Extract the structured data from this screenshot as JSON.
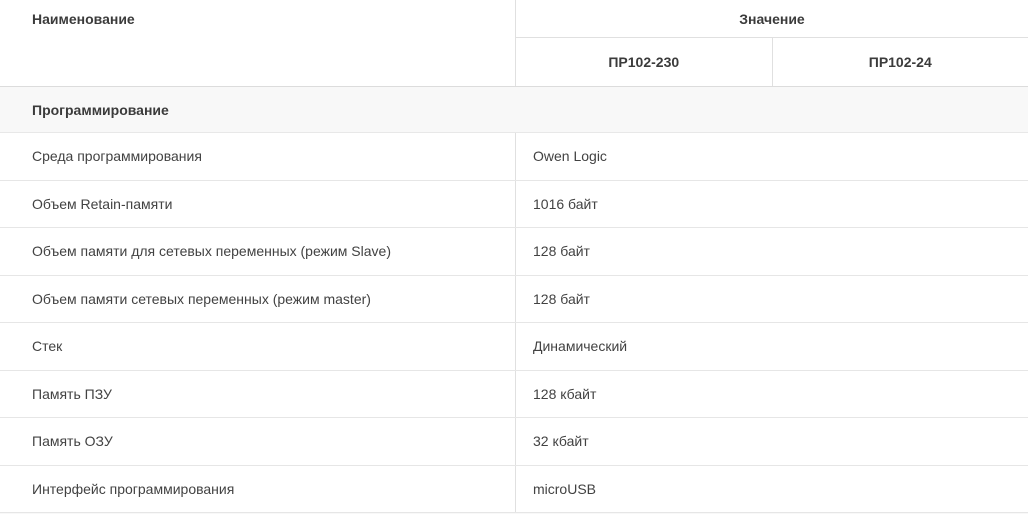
{
  "table": {
    "header": {
      "name_label": "Наименование",
      "value_label": "Значение",
      "columns": [
        "ПР102-230",
        "ПР102-24"
      ]
    },
    "section_label": "Программирование",
    "rows": [
      {
        "name": "Среда программирования",
        "value": "Owen Logic"
      },
      {
        "name": "Объем Retain-памяти",
        "value": "1016 байт"
      },
      {
        "name": "Объем памяти для сетевых переменных (режим Slave)",
        "value": "128 байт"
      },
      {
        "name": "Объем памяти сетевых переменных (режим master)",
        "value": "128 байт"
      },
      {
        "name": "Стек",
        "value": "Динамический"
      },
      {
        "name": "Память ПЗУ",
        "value": "128 кбайт"
      },
      {
        "name": "Память ОЗУ",
        "value": "32 кбайт"
      },
      {
        "name": "Интерфейс программирования",
        "value": "microUSB"
      }
    ],
    "colors": {
      "border": "#e0e0e0",
      "section_background": "#f8f8f8",
      "text": "#424242"
    }
  }
}
